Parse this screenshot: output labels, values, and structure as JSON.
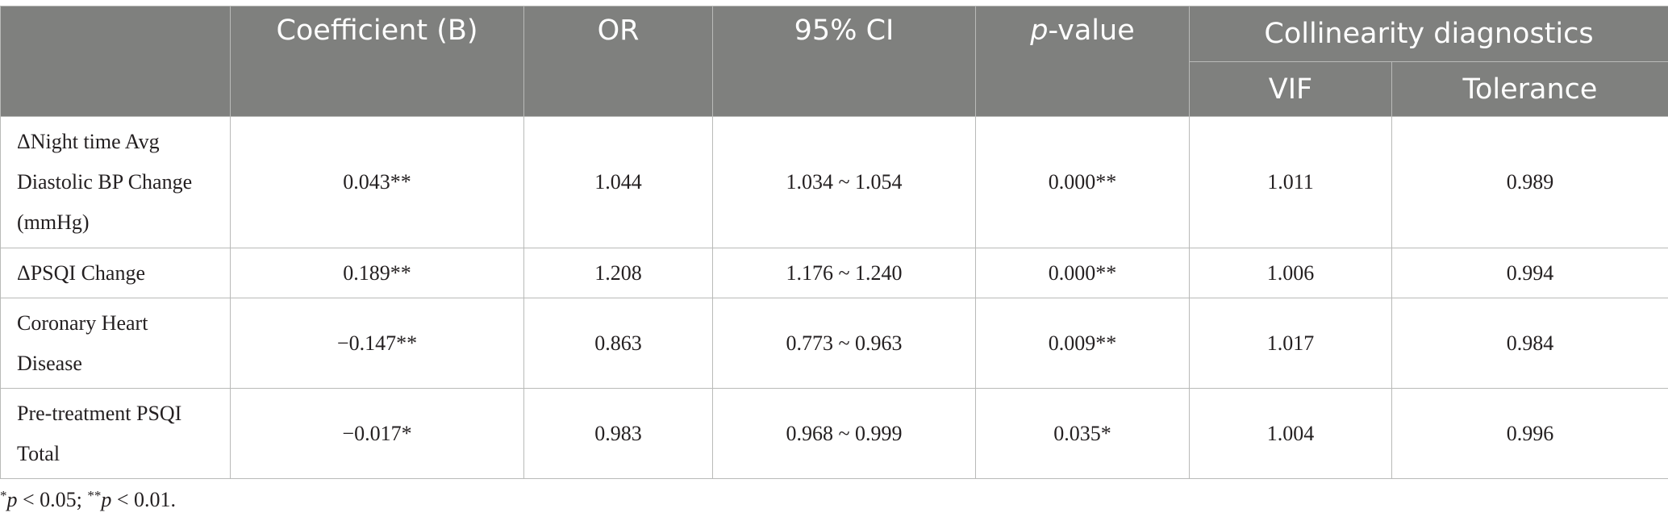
{
  "table": {
    "headers": {
      "blank": "",
      "coefficient": "Coefficient (B)",
      "or": "OR",
      "ci": "95% CI",
      "p_italic": "p",
      "p_rest": "-value",
      "collinearity": "Collinearity diagnostics",
      "vif": "VIF",
      "tolerance": "Tolerance"
    },
    "rows": [
      {
        "label_lines": [
          "ΔNight time Avg",
          "Diastolic BP Change",
          "(mmHg)"
        ],
        "coefficient": "0.043**",
        "or": "1.044",
        "ci": "1.034 ~ 1.054",
        "p": "0.000**",
        "vif": "1.011",
        "tolerance": "0.989"
      },
      {
        "label_lines": [
          "ΔPSQI Change"
        ],
        "coefficient": "0.189**",
        "or": "1.208",
        "ci": "1.176 ~ 1.240",
        "p": "0.000**",
        "vif": "1.006",
        "tolerance": "0.994"
      },
      {
        "label_lines": [
          "Coronary Heart",
          "Disease"
        ],
        "coefficient": "−0.147**",
        "or": "0.863",
        "ci": "0.773 ~ 0.963",
        "p": "0.009**",
        "vif": "1.017",
        "tolerance": "0.984"
      },
      {
        "label_lines": [
          "Pre-treatment PSQI",
          "Total"
        ],
        "coefficient": "−0.017*",
        "or": "0.983",
        "ci": "0.968 ~ 0.999",
        "p": "0.035*",
        "vif": "1.004",
        "tolerance": "0.996"
      }
    ]
  },
  "footnote": {
    "sup1": "*",
    "p1": "p",
    "text1": " < 0.05; ",
    "sup2": "**",
    "p2": "p",
    "text2": " < 0.01."
  }
}
